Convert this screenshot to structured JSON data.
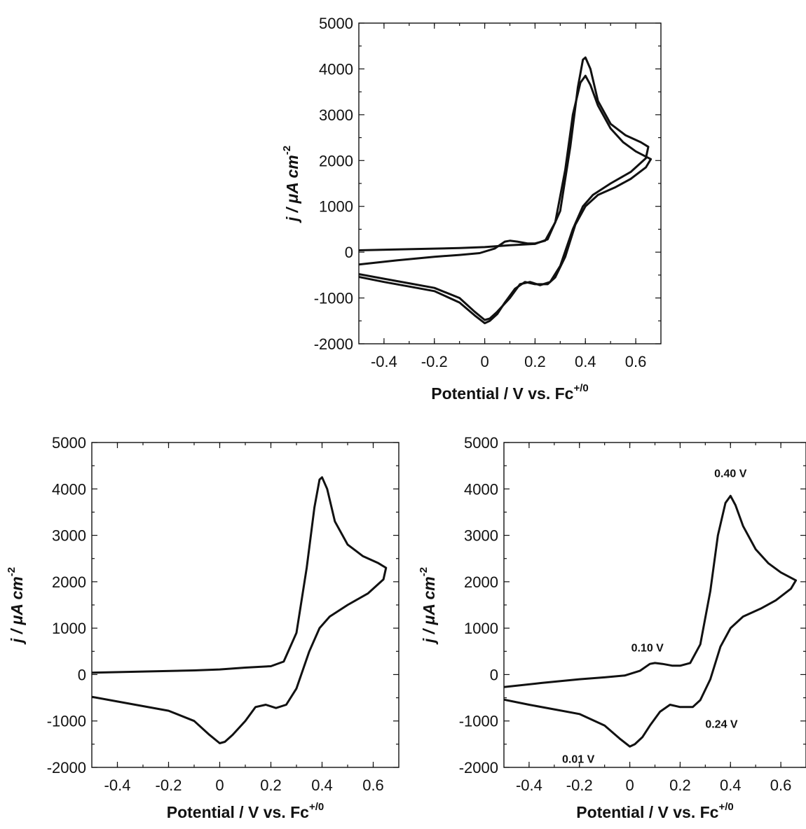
{
  "chart_data": [
    {
      "type": "line",
      "xlabel": "Potential / V vs. Fc",
      "xlabel_sup": "+/0",
      "ylabel": "j / μA cm",
      "ylabel_sup": "-2",
      "xlim": [
        -0.5,
        0.7
      ],
      "ylim": [
        -2000,
        5000
      ],
      "xticks": [
        "-0.4",
        "-0.2",
        "0",
        "0.2",
        "0.4",
        "0.6"
      ],
      "yticks": [
        "5000",
        "4000",
        "3000",
        "2000",
        "1000",
        "0",
        "-1000",
        "-2000"
      ],
      "annotations": [],
      "series": [
        {
          "points": [
            [
              -0.5,
              40
            ],
            [
              -0.3,
              65
            ],
            [
              -0.1,
              90
            ],
            [
              0.0,
              110
            ],
            [
              0.1,
              150
            ],
            [
              0.2,
              180
            ],
            [
              0.25,
              280
            ],
            [
              0.3,
              900
            ],
            [
              0.34,
              2300
            ],
            [
              0.37,
              3600
            ],
            [
              0.39,
              4200
            ],
            [
              0.4,
              4250
            ],
            [
              0.42,
              4000
            ],
            [
              0.45,
              3300
            ],
            [
              0.5,
              2800
            ],
            [
              0.56,
              2550
            ],
            [
              0.62,
              2400
            ],
            [
              0.65,
              2300
            ],
            [
              0.64,
              2050
            ],
            [
              0.58,
              1750
            ],
            [
              0.5,
              1500
            ],
            [
              0.43,
              1250
            ],
            [
              0.39,
              1000
            ],
            [
              0.35,
              500
            ],
            [
              0.3,
              -300
            ],
            [
              0.26,
              -650
            ],
            [
              0.22,
              -720
            ],
            [
              0.18,
              -650
            ],
            [
              0.14,
              -700
            ],
            [
              0.1,
              -1000
            ],
            [
              0.05,
              -1300
            ],
            [
              0.02,
              -1450
            ],
            [
              0.0,
              -1480
            ],
            [
              -0.04,
              -1300
            ],
            [
              -0.1,
              -1000
            ],
            [
              -0.2,
              -780
            ],
            [
              -0.3,
              -680
            ],
            [
              -0.4,
              -580
            ],
            [
              -0.5,
              -480
            ]
          ]
        },
        {
          "points": [
            [
              -0.5,
              -270
            ],
            [
              -0.35,
              -180
            ],
            [
              -0.2,
              -100
            ],
            [
              -0.1,
              -60
            ],
            [
              -0.02,
              -20
            ],
            [
              0.04,
              80
            ],
            [
              0.08,
              230
            ],
            [
              0.1,
              250
            ],
            [
              0.13,
              230
            ],
            [
              0.17,
              190
            ],
            [
              0.2,
              190
            ],
            [
              0.24,
              250
            ],
            [
              0.28,
              650
            ],
            [
              0.32,
              1800
            ],
            [
              0.35,
              3000
            ],
            [
              0.38,
              3700
            ],
            [
              0.4,
              3850
            ],
            [
              0.42,
              3650
            ],
            [
              0.45,
              3200
            ],
            [
              0.5,
              2700
            ],
            [
              0.55,
              2400
            ],
            [
              0.6,
              2200
            ],
            [
              0.66,
              2030
            ],
            [
              0.64,
              1850
            ],
            [
              0.58,
              1600
            ],
            [
              0.52,
              1420
            ],
            [
              0.45,
              1250
            ],
            [
              0.4,
              1000
            ],
            [
              0.36,
              600
            ],
            [
              0.32,
              -100
            ],
            [
              0.28,
              -550
            ],
            [
              0.25,
              -700
            ],
            [
              0.2,
              -700
            ],
            [
              0.16,
              -650
            ],
            [
              0.12,
              -800
            ],
            [
              0.08,
              -1100
            ],
            [
              0.05,
              -1350
            ],
            [
              0.02,
              -1500
            ],
            [
              0.0,
              -1550
            ],
            [
              -0.04,
              -1380
            ],
            [
              -0.1,
              -1100
            ],
            [
              -0.2,
              -850
            ],
            [
              -0.3,
              -750
            ],
            [
              -0.4,
              -650
            ],
            [
              -0.5,
              -540
            ]
          ]
        }
      ]
    },
    {
      "type": "line",
      "xlabel": "Potential / V vs. Fc",
      "xlabel_sup": "+/0",
      "ylabel": "j / μA cm",
      "ylabel_sup": "-2",
      "xlim": [
        -0.5,
        0.7
      ],
      "ylim": [
        -2000,
        5000
      ],
      "xticks": [
        "-0.4",
        "-0.2",
        "0",
        "0.2",
        "0.4",
        "0.6"
      ],
      "yticks": [
        "5000",
        "4000",
        "3000",
        "2000",
        "1000",
        "0",
        "-1000",
        "-2000"
      ],
      "annotations": [],
      "series": [
        {
          "points": [
            [
              -0.5,
              40
            ],
            [
              -0.3,
              65
            ],
            [
              -0.1,
              90
            ],
            [
              0.0,
              110
            ],
            [
              0.1,
              150
            ],
            [
              0.2,
              180
            ],
            [
              0.25,
              280
            ],
            [
              0.3,
              900
            ],
            [
              0.34,
              2300
            ],
            [
              0.37,
              3600
            ],
            [
              0.39,
              4200
            ],
            [
              0.4,
              4250
            ],
            [
              0.42,
              4000
            ],
            [
              0.45,
              3300
            ],
            [
              0.5,
              2800
            ],
            [
              0.56,
              2550
            ],
            [
              0.62,
              2400
            ],
            [
              0.65,
              2300
            ],
            [
              0.64,
              2050
            ],
            [
              0.58,
              1750
            ],
            [
              0.5,
              1500
            ],
            [
              0.43,
              1250
            ],
            [
              0.39,
              1000
            ],
            [
              0.35,
              500
            ],
            [
              0.3,
              -300
            ],
            [
              0.26,
              -650
            ],
            [
              0.22,
              -720
            ],
            [
              0.18,
              -650
            ],
            [
              0.14,
              -700
            ],
            [
              0.1,
              -1000
            ],
            [
              0.05,
              -1300
            ],
            [
              0.02,
              -1450
            ],
            [
              0.0,
              -1480
            ],
            [
              -0.04,
              -1300
            ],
            [
              -0.1,
              -1000
            ],
            [
              -0.2,
              -780
            ],
            [
              -0.3,
              -680
            ],
            [
              -0.4,
              -580
            ],
            [
              -0.5,
              -480
            ]
          ]
        }
      ]
    },
    {
      "type": "line",
      "xlabel": "Potential / V vs. Fc",
      "xlabel_sup": "+/0",
      "ylabel": "j / μA cm",
      "ylabel_sup": "-2",
      "xlim": [
        -0.5,
        0.7
      ],
      "ylim": [
        -2000,
        5000
      ],
      "xticks": [
        "-0.4",
        "-0.2",
        "0",
        "0.2",
        "0.4",
        "0.6"
      ],
      "yticks": [
        "5000",
        "4000",
        "3000",
        "2000",
        "1000",
        "0",
        "-1000",
        "-2000"
      ],
      "annotations": [
        {
          "text": "0.40 V",
          "x": 0.4,
          "y": 4250
        },
        {
          "text": "0.10 V",
          "x": 0.07,
          "y": 500
        },
        {
          "text": "0.24 V",
          "x": 0.3,
          "y": -1150
        },
        {
          "text": "0.01 V",
          "x": -0.14,
          "y": -1900
        }
      ],
      "series": [
        {
          "points": [
            [
              -0.5,
              -270
            ],
            [
              -0.35,
              -180
            ],
            [
              -0.2,
              -100
            ],
            [
              -0.1,
              -60
            ],
            [
              -0.02,
              -20
            ],
            [
              0.04,
              80
            ],
            [
              0.08,
              230
            ],
            [
              0.1,
              250
            ],
            [
              0.13,
              230
            ],
            [
              0.17,
              190
            ],
            [
              0.2,
              190
            ],
            [
              0.24,
              250
            ],
            [
              0.28,
              650
            ],
            [
              0.32,
              1800
            ],
            [
              0.35,
              3000
            ],
            [
              0.38,
              3700
            ],
            [
              0.4,
              3850
            ],
            [
              0.42,
              3650
            ],
            [
              0.45,
              3200
            ],
            [
              0.5,
              2700
            ],
            [
              0.55,
              2400
            ],
            [
              0.6,
              2200
            ],
            [
              0.66,
              2030
            ],
            [
              0.64,
              1850
            ],
            [
              0.58,
              1600
            ],
            [
              0.52,
              1420
            ],
            [
              0.45,
              1250
            ],
            [
              0.4,
              1000
            ],
            [
              0.36,
              600
            ],
            [
              0.32,
              -100
            ],
            [
              0.28,
              -550
            ],
            [
              0.25,
              -700
            ],
            [
              0.2,
              -700
            ],
            [
              0.16,
              -650
            ],
            [
              0.12,
              -800
            ],
            [
              0.08,
              -1100
            ],
            [
              0.05,
              -1350
            ],
            [
              0.02,
              -1500
            ],
            [
              0.0,
              -1550
            ],
            [
              -0.04,
              -1380
            ],
            [
              -0.1,
              -1100
            ],
            [
              -0.2,
              -850
            ],
            [
              -0.3,
              -750
            ],
            [
              -0.4,
              -650
            ],
            [
              -0.5,
              -540
            ]
          ]
        }
      ]
    }
  ]
}
